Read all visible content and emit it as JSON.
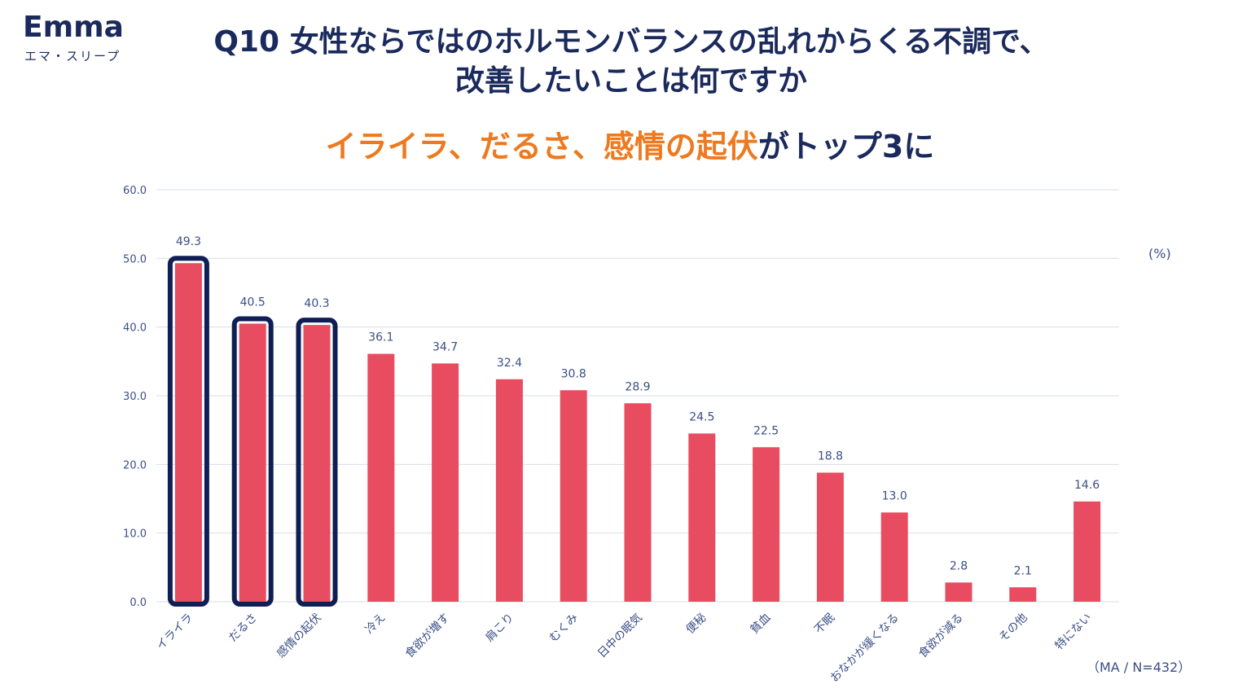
{
  "logo": {
    "word": "Emma",
    "sub": "エマ・スリープ"
  },
  "title": {
    "line1": "Q10 女性ならではのホルモンバランスの乱れからくる不調で、",
    "line2": "改善したいことは何ですか"
  },
  "headline": {
    "highlight": "イライラ、だるさ、感情の起伏",
    "rest": "がトップ3に"
  },
  "colors": {
    "bar": "#e84c60",
    "highlight_border": "#0f1f55",
    "orange": "#ee7a1f",
    "navy": "#1b2a5c"
  },
  "chart_data": {
    "type": "bar",
    "categories": [
      "イライラ",
      "だるさ",
      "感情の起伏",
      "冷え",
      "食欲が増す",
      "肩こり",
      "むくみ",
      "日中の眠気",
      "便秘",
      "貧血",
      "不眠",
      "おなかが緩くなる",
      "食欲が減る",
      "その他",
      "特にない"
    ],
    "values": [
      49.3,
      40.5,
      40.3,
      36.1,
      34.7,
      32.4,
      30.8,
      28.9,
      24.5,
      22.5,
      18.8,
      13.0,
      2.8,
      2.1,
      14.6
    ],
    "value_labels": [
      "49.3",
      "40.5",
      "40.3",
      "36.1",
      "34.7",
      "32.4",
      "30.8",
      "28.9",
      "24.5",
      "22.5",
      "18.8",
      "13.0",
      "2.8",
      "2.1",
      "14.6"
    ],
    "highlighted": [
      0,
      1,
      2
    ],
    "ylim": [
      0,
      60
    ],
    "yticks": [
      "0.0",
      "10.0",
      "20.0",
      "30.0",
      "40.0",
      "50.0",
      "60.0"
    ],
    "grid": true,
    "unit_label": "(%)",
    "sample_note": "（MA / N=432）"
  }
}
